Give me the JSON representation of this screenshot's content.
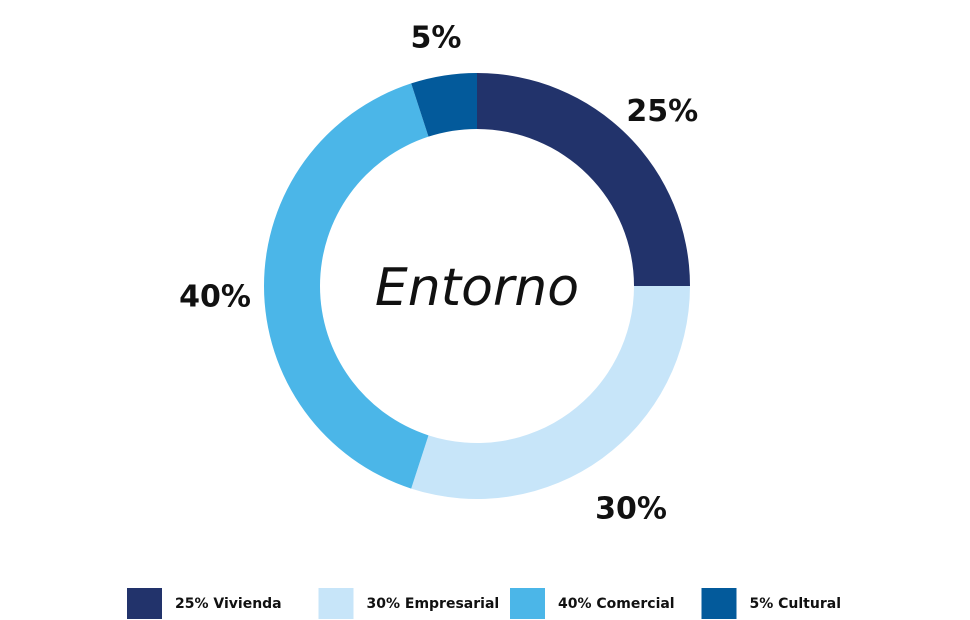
{
  "chart_data": {
    "type": "donut",
    "center_text": "Entorno",
    "categories": [
      "25% Vivienda",
      "30% Empresarial",
      "40% Comercial",
      "5% Cultural"
    ],
    "values": [
      25,
      30,
      40,
      5
    ],
    "value_labels": [
      "25%",
      "30%",
      "40%",
      "5%"
    ],
    "colors": [
      "#22336b",
      "#c7e5f9",
      "#4bb6e8",
      "#035a9b"
    ],
    "legend": "bottom"
  }
}
